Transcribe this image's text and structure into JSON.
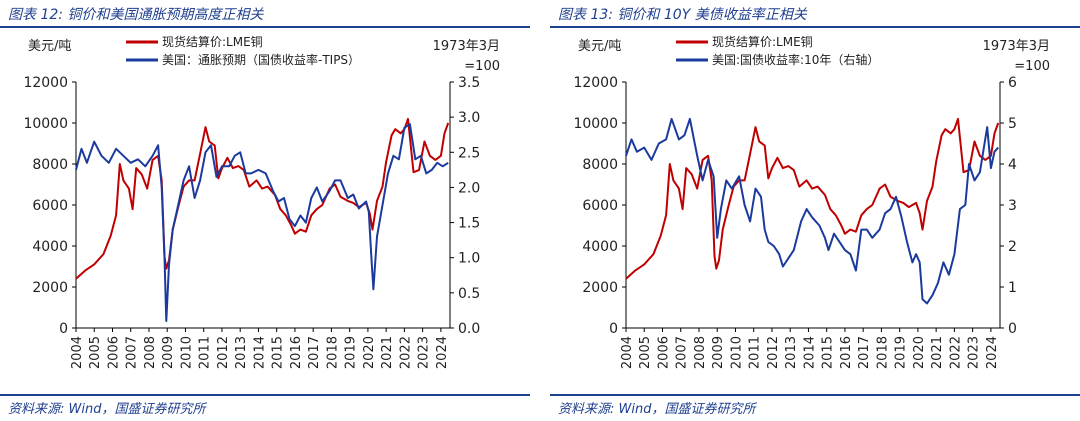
{
  "charts": [
    {
      "title": "图表 12:  铜价和美国通胀预期高度正相关",
      "source": "资料来源:  Wind，国盛证券研究所",
      "chart_data": {
        "type": "line",
        "title": "图表 12:  铜价和美国通胀预期高度正相关",
        "ylabel_left": "美元/吨",
        "ylabel_right": "1973年3月=100",
        "ylim_left": [
          0,
          12000
        ],
        "ylim_right": [
          0,
          3.5
        ],
        "xlim": [
          2004,
          2024.5
        ],
        "yticks_left": [
          "0",
          "2000",
          "4000",
          "6000",
          "8000",
          "10000",
          "12000"
        ],
        "yticks_right": [
          "0.0",
          "0.5",
          "1.0",
          "1.5",
          "2.0",
          "2.5",
          "3.0",
          "3.5"
        ],
        "xticks": [
          "2004",
          "2005",
          "2006",
          "2007",
          "2008",
          "2009",
          "2010",
          "2011",
          "2012",
          "2013",
          "2014",
          "2015",
          "2016",
          "2017",
          "2018",
          "2019",
          "2020",
          "2021",
          "2022",
          "2023",
          "2024"
        ],
        "grid": false,
        "legend_position": "top",
        "series": [
          {
            "name": "现货结算价:LME铜",
            "axis": "left",
            "color": "#c00000",
            "x": [
              2004.0,
              2004.5,
              2005.0,
              2005.5,
              2005.9,
              2006.2,
              2006.4,
              2006.6,
              2006.9,
              2007.1,
              2007.3,
              2007.6,
              2007.9,
              2008.2,
              2008.5,
              2008.7,
              2008.85,
              2008.95,
              2009.1,
              2009.3,
              2009.6,
              2009.9,
              2010.2,
              2010.5,
              2010.8,
              2011.1,
              2011.3,
              2011.6,
              2011.8,
              2012.0,
              2012.3,
              2012.6,
              2012.9,
              2013.2,
              2013.5,
              2013.9,
              2014.2,
              2014.5,
              2014.9,
              2015.2,
              2015.5,
              2015.8,
              2016.0,
              2016.3,
              2016.6,
              2016.9,
              2017.2,
              2017.5,
              2017.9,
              2018.2,
              2018.5,
              2018.9,
              2019.2,
              2019.5,
              2019.9,
              2020.1,
              2020.25,
              2020.5,
              2020.8,
              2021.0,
              2021.3,
              2021.5,
              2021.8,
              2022.0,
              2022.2,
              2022.5,
              2022.8,
              2023.1,
              2023.4,
              2023.7,
              2024.0,
              2024.2,
              2024.4
            ],
            "y": [
              2400,
              2800,
              3100,
              3600,
              4500,
              5500,
              8000,
              7200,
              6800,
              5800,
              7800,
              7500,
              6800,
              8200,
              8400,
              7200,
              3500,
              2900,
              3300,
              4800,
              5900,
              6900,
              7200,
              7200,
              8500,
              9800,
              9100,
              8900,
              7300,
              7800,
              8300,
              7800,
              7900,
              7700,
              6900,
              7200,
              6800,
              6900,
              6500,
              5800,
              5500,
              5000,
              4600,
              4800,
              4700,
              5500,
              5800,
              6000,
              6800,
              7000,
              6400,
              6200,
              6100,
              5900,
              6100,
              5600,
              4800,
              6200,
              6900,
              8100,
              9400,
              9700,
              9500,
              9700,
              10200,
              7600,
              7700,
              9100,
              8400,
              8200,
              8400,
              9500,
              10000
            ]
          },
          {
            "name": "美国：通胀预期（国债收益率-TIPS）",
            "axis": "right",
            "color": "#1a3a9e",
            "x": [
              2004.0,
              2004.3,
              2004.6,
              2005.0,
              2005.4,
              2005.8,
              2006.2,
              2006.6,
              2007.0,
              2007.4,
              2007.8,
              2008.2,
              2008.5,
              2008.7,
              2008.85,
              2008.95,
              2009.1,
              2009.3,
              2009.6,
              2009.9,
              2010.2,
              2010.5,
              2010.8,
              2011.1,
              2011.4,
              2011.7,
              2012.0,
              2012.4,
              2012.7,
              2013.0,
              2013.3,
              2013.6,
              2014.0,
              2014.4,
              2014.8,
              2015.1,
              2015.4,
              2015.7,
              2016.0,
              2016.3,
              2016.6,
              2016.9,
              2017.2,
              2017.5,
              2017.9,
              2018.2,
              2018.5,
              2018.9,
              2019.2,
              2019.5,
              2019.9,
              2020.05,
              2020.2,
              2020.3,
              2020.5,
              2020.8,
              2021.1,
              2021.4,
              2021.7,
              2022.0,
              2022.3,
              2022.6,
              2022.9,
              2023.2,
              2023.5,
              2023.8,
              2024.1,
              2024.4
            ],
            "y": [
              2.25,
              2.55,
              2.35,
              2.65,
              2.45,
              2.35,
              2.55,
              2.45,
              2.35,
              2.4,
              2.3,
              2.45,
              2.6,
              2.0,
              1.0,
              0.1,
              0.9,
              1.4,
              1.75,
              2.1,
              2.3,
              1.85,
              2.1,
              2.5,
              2.6,
              2.15,
              2.3,
              2.3,
              2.45,
              2.5,
              2.2,
              2.2,
              2.25,
              2.2,
              1.95,
              1.8,
              1.85,
              1.55,
              1.45,
              1.6,
              1.5,
              1.85,
              2.0,
              1.8,
              1.95,
              2.1,
              2.1,
              1.85,
              1.9,
              1.7,
              1.8,
              1.65,
              0.95,
              0.55,
              1.3,
              1.75,
              2.2,
              2.45,
              2.4,
              2.85,
              2.9,
              2.4,
              2.45,
              2.2,
              2.25,
              2.35,
              2.3,
              2.35
            ]
          }
        ]
      }
    },
    {
      "title": "图表 13:  铜价和 10Y 美债收益率正相关",
      "source": "资料来源:  Wind，国盛证券研究所",
      "chart_data": {
        "type": "line",
        "title": "图表 13:  铜价和 10Y 美债收益率正相关",
        "ylabel_left": "美元/吨",
        "ylabel_right": "1973年3月=100",
        "ylim_left": [
          0,
          12000
        ],
        "ylim_right": [
          0,
          6
        ],
        "xlim": [
          2004,
          2024.5
        ],
        "yticks_left": [
          "0",
          "2000",
          "4000",
          "6000",
          "8000",
          "10000",
          "12000"
        ],
        "yticks_right": [
          "0",
          "1",
          "2",
          "3",
          "4",
          "5",
          "6"
        ],
        "xticks": [
          "2004",
          "2005",
          "2006",
          "2007",
          "2008",
          "2009",
          "2010",
          "2011",
          "2012",
          "2013",
          "2014",
          "2015",
          "2016",
          "2017",
          "2018",
          "2019",
          "2020",
          "2021",
          "2022",
          "2023",
          "2024"
        ],
        "grid": false,
        "legend_position": "top",
        "series": [
          {
            "name": "现货结算价:LME铜",
            "axis": "left",
            "color": "#c00000",
            "x": [
              2004.0,
              2004.5,
              2005.0,
              2005.5,
              2005.9,
              2006.2,
              2006.4,
              2006.6,
              2006.9,
              2007.1,
              2007.3,
              2007.6,
              2007.9,
              2008.2,
              2008.5,
              2008.7,
              2008.85,
              2008.95,
              2009.1,
              2009.3,
              2009.6,
              2009.9,
              2010.2,
              2010.5,
              2010.8,
              2011.1,
              2011.3,
              2011.6,
              2011.8,
              2012.0,
              2012.3,
              2012.6,
              2012.9,
              2013.2,
              2013.5,
              2013.9,
              2014.2,
              2014.5,
              2014.9,
              2015.2,
              2015.5,
              2015.8,
              2016.0,
              2016.3,
              2016.6,
              2016.9,
              2017.2,
              2017.5,
              2017.9,
              2018.2,
              2018.5,
              2018.9,
              2019.2,
              2019.5,
              2019.9,
              2020.1,
              2020.25,
              2020.5,
              2020.8,
              2021.0,
              2021.3,
              2021.5,
              2021.8,
              2022.0,
              2022.2,
              2022.5,
              2022.8,
              2023.1,
              2023.4,
              2023.7,
              2024.0,
              2024.2,
              2024.4
            ],
            "y": [
              2400,
              2800,
              3100,
              3600,
              4500,
              5500,
              8000,
              7200,
              6800,
              5800,
              7800,
              7500,
              6800,
              8200,
              8400,
              7200,
              3500,
              2900,
              3300,
              4800,
              5900,
              6900,
              7200,
              7200,
              8500,
              9800,
              9100,
              8900,
              7300,
              7800,
              8300,
              7800,
              7900,
              7700,
              6900,
              7200,
              6800,
              6900,
              6500,
              5800,
              5500,
              5000,
              4600,
              4800,
              4700,
              5500,
              5800,
              6000,
              6800,
              7000,
              6400,
              6200,
              6100,
              5900,
              6100,
              5600,
              4800,
              6200,
              6900,
              8100,
              9400,
              9700,
              9500,
              9700,
              10200,
              7600,
              7700,
              9100,
              8400,
              8200,
              8400,
              9500,
              10000
            ]
          },
          {
            "name": "美国:国债收益率:10年（右轴）",
            "axis": "right",
            "color": "#1a3a9e",
            "x": [
              2004.0,
              2004.3,
              2004.6,
              2005.0,
              2005.4,
              2005.8,
              2006.2,
              2006.5,
              2006.9,
              2007.2,
              2007.5,
              2007.9,
              2008.2,
              2008.5,
              2008.8,
              2009.0,
              2009.2,
              2009.5,
              2009.8,
              2010.2,
              2010.5,
              2010.8,
              2011.1,
              2011.4,
              2011.6,
              2011.8,
              2012.1,
              2012.4,
              2012.6,
              2012.9,
              2013.2,
              2013.6,
              2013.9,
              2014.2,
              2014.6,
              2014.9,
              2015.1,
              2015.4,
              2015.7,
              2016.0,
              2016.3,
              2016.6,
              2016.9,
              2017.2,
              2017.5,
              2017.9,
              2018.2,
              2018.5,
              2018.8,
              2019.1,
              2019.4,
              2019.7,
              2019.9,
              2020.1,
              2020.25,
              2020.5,
              2020.8,
              2021.1,
              2021.4,
              2021.7,
              2022.0,
              2022.3,
              2022.6,
              2022.8,
              2023.1,
              2023.4,
              2023.8,
              2024.0,
              2024.2,
              2024.4
            ],
            "y": [
              4.2,
              4.6,
              4.3,
              4.4,
              4.1,
              4.5,
              4.6,
              5.1,
              4.6,
              4.7,
              5.1,
              4.2,
              3.6,
              4.1,
              3.7,
              2.2,
              2.9,
              3.6,
              3.4,
              3.7,
              3.0,
              2.6,
              3.4,
              3.2,
              2.4,
              2.1,
              2.0,
              1.8,
              1.5,
              1.7,
              1.9,
              2.6,
              2.9,
              2.7,
              2.5,
              2.2,
              1.9,
              2.3,
              2.1,
              1.9,
              1.8,
              1.4,
              2.4,
              2.4,
              2.2,
              2.4,
              2.8,
              2.9,
              3.2,
              2.7,
              2.1,
              1.6,
              1.8,
              1.6,
              0.7,
              0.6,
              0.8,
              1.1,
              1.6,
              1.3,
              1.8,
              2.9,
              3.0,
              4.0,
              3.6,
              3.8,
              4.9,
              3.9,
              4.3,
              4.4
            ]
          }
        ]
      }
    }
  ]
}
